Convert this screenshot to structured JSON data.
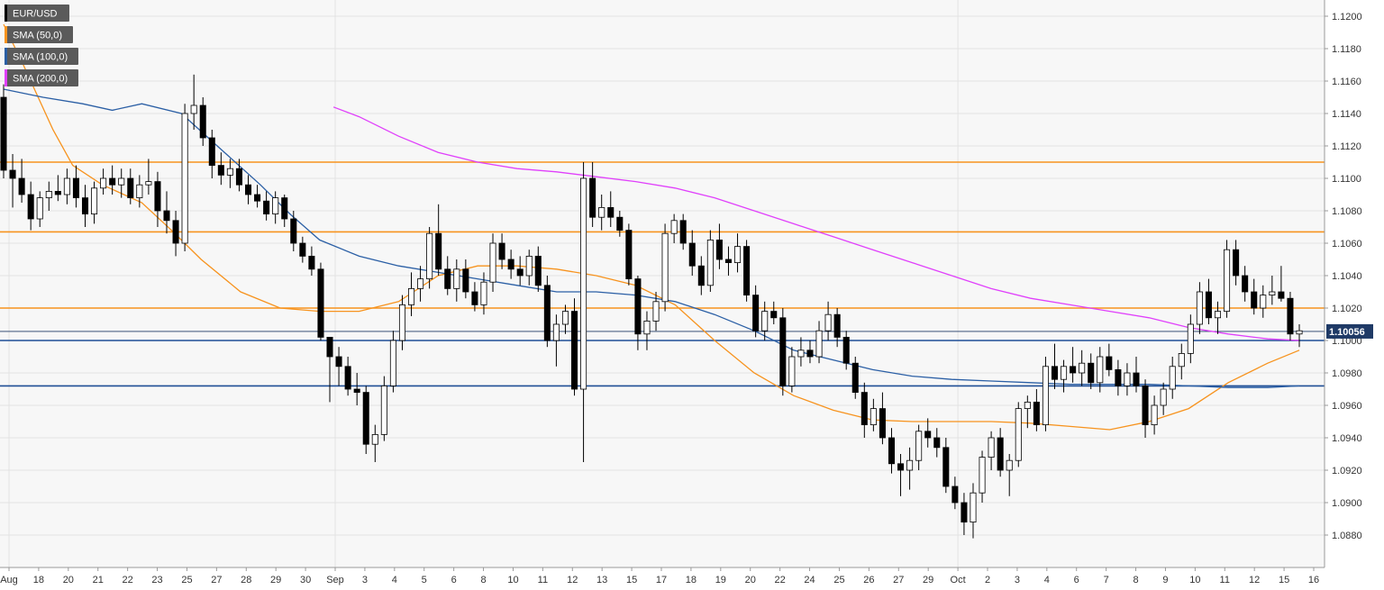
{
  "legend": [
    {
      "label": "EUR/USD",
      "color": "#000000"
    },
    {
      "label": "SMA (50,0)",
      "color": "#f7931e"
    },
    {
      "label": "SMA (100,0)",
      "color": "#2b5fa5"
    },
    {
      "label": "SMA (200,0)",
      "color": "#e040fb"
    }
  ],
  "colors": {
    "background": "#f7f7f7",
    "grid": "#e3e3e3",
    "resistance": "#f7931e",
    "support": "#1f4e96",
    "sma50": "#f7931e",
    "sma100": "#2b5fa5",
    "sma200": "#e040fb",
    "candle_body": "#000000",
    "candle_wick": "#000000",
    "price_tag": "#1f3a66",
    "legend_bg": "#5a5a5a"
  },
  "chart_data": {
    "type": "candlestick",
    "symbol": "EUR/USD",
    "ylim": [
      1.086,
      1.121
    ],
    "y_ticks": [
      "1.0880",
      "1.0900",
      "1.0920",
      "1.0940",
      "1.0960",
      "1.0980",
      "1.1000",
      "1.1020",
      "1.1040",
      "1.1060",
      "1.1080",
      "1.1100",
      "1.1120",
      "1.1140",
      "1.1160",
      "1.1180",
      "1.1200"
    ],
    "x_ticks": [
      "Aug",
      "18",
      "20",
      "21",
      "22",
      "23",
      "25",
      "27",
      "28",
      "29",
      "30",
      "Sep",
      "3",
      "4",
      "5",
      "6",
      "8",
      "10",
      "11",
      "12",
      "13",
      "15",
      "17",
      "18",
      "19",
      "20",
      "22",
      "24",
      "25",
      "26",
      "27",
      "29",
      "Oct",
      "2",
      "3",
      "4",
      "6",
      "7",
      "8",
      "9",
      "10",
      "11",
      "12",
      "15",
      "16"
    ],
    "last_price": "1.10056",
    "horizontal_lines": [
      {
        "kind": "resistance",
        "value": 1.111
      },
      {
        "kind": "resistance",
        "value": 1.1067
      },
      {
        "kind": "resistance",
        "value": 1.102
      },
      {
        "kind": "support",
        "value": 1.1
      },
      {
        "kind": "support",
        "value": 1.0972
      }
    ],
    "candles": [
      [
        1.115,
        1.1158,
        1.11,
        1.1105
      ],
      [
        1.1105,
        1.1115,
        1.1082,
        1.11
      ],
      [
        1.11,
        1.1112,
        1.1085,
        1.109
      ],
      [
        1.109,
        1.1098,
        1.1068,
        1.1075
      ],
      [
        1.1075,
        1.1092,
        1.107,
        1.1088
      ],
      [
        1.1088,
        1.1098,
        1.108,
        1.1092
      ],
      [
        1.1092,
        1.1102,
        1.1086,
        1.109
      ],
      [
        1.109,
        1.1106,
        1.1084,
        1.11
      ],
      [
        1.11,
        1.1108,
        1.1082,
        1.1088
      ],
      [
        1.1088,
        1.1096,
        1.107,
        1.1078
      ],
      [
        1.1078,
        1.1098,
        1.1072,
        1.1094
      ],
      [
        1.1094,
        1.1106,
        1.109,
        1.11
      ],
      [
        1.11,
        1.1108,
        1.109,
        1.1096
      ],
      [
        1.1096,
        1.1106,
        1.1088,
        1.11
      ],
      [
        1.11,
        1.1106,
        1.1084,
        1.1088
      ],
      [
        1.1088,
        1.1102,
        1.1082,
        1.1096
      ],
      [
        1.1096,
        1.1112,
        1.109,
        1.1098
      ],
      [
        1.1098,
        1.1104,
        1.107,
        1.108
      ],
      [
        1.108,
        1.1092,
        1.1066,
        1.1074
      ],
      [
        1.1074,
        1.108,
        1.1052,
        1.106
      ],
      [
        1.106,
        1.1146,
        1.1055,
        1.114
      ],
      [
        1.114,
        1.1164,
        1.113,
        1.1145
      ],
      [
        1.1145,
        1.115,
        1.112,
        1.1125
      ],
      [
        1.1125,
        1.113,
        1.11,
        1.1108
      ],
      [
        1.1108,
        1.1116,
        1.1096,
        1.1102
      ],
      [
        1.1102,
        1.1112,
        1.1094,
        1.1106
      ],
      [
        1.1106,
        1.1112,
        1.1092,
        1.1096
      ],
      [
        1.1096,
        1.1102,
        1.1084,
        1.109
      ],
      [
        1.109,
        1.1096,
        1.1082,
        1.1086
      ],
      [
        1.1086,
        1.1092,
        1.1074,
        1.1078
      ],
      [
        1.1078,
        1.1092,
        1.1072,
        1.1088
      ],
      [
        1.1088,
        1.109,
        1.107,
        1.1075
      ],
      [
        1.1075,
        1.108,
        1.1055,
        1.106
      ],
      [
        1.106,
        1.1064,
        1.1048,
        1.1052
      ],
      [
        1.1052,
        1.1058,
        1.104,
        1.1044
      ],
      [
        1.1044,
        1.1048,
        1.1,
        1.1002
      ],
      [
        1.1002,
        1.1002,
        1.0962,
        1.099
      ],
      [
        1.099,
        1.0996,
        1.0972,
        1.0984
      ],
      [
        1.0984,
        1.099,
        1.0966,
        1.097
      ],
      [
        1.097,
        1.098,
        1.096,
        1.0968
      ],
      [
        1.0968,
        1.0972,
        1.093,
        1.0936
      ],
      [
        1.0936,
        1.0948,
        1.0925,
        1.0942
      ],
      [
        1.0942,
        1.0978,
        1.0938,
        1.0972
      ],
      [
        1.0972,
        1.1006,
        1.0968,
        1.1
      ],
      [
        1.1,
        1.1028,
        1.0994,
        1.1022
      ],
      [
        1.1022,
        1.1042,
        1.1015,
        1.1032
      ],
      [
        1.1032,
        1.1046,
        1.1024,
        1.1038
      ],
      [
        1.1038,
        1.107,
        1.1032,
        1.1066
      ],
      [
        1.1066,
        1.1084,
        1.104,
        1.1044
      ],
      [
        1.1044,
        1.1052,
        1.1028,
        1.1032
      ],
      [
        1.1032,
        1.105,
        1.1024,
        1.1044
      ],
      [
        1.1044,
        1.105,
        1.1026,
        1.103
      ],
      [
        1.103,
        1.1036,
        1.1018,
        1.1022
      ],
      [
        1.1022,
        1.1042,
        1.1016,
        1.1036
      ],
      [
        1.1036,
        1.1066,
        1.103,
        1.106
      ],
      [
        1.106,
        1.1066,
        1.1044,
        1.105
      ],
      [
        1.105,
        1.1056,
        1.1038,
        1.1044
      ],
      [
        1.1044,
        1.1052,
        1.1034,
        1.104
      ],
      [
        1.104,
        1.1056,
        1.1034,
        1.1052
      ],
      [
        1.1052,
        1.1058,
        1.103,
        1.1034
      ],
      [
        1.1034,
        1.104,
        1.0996,
        1.1
      ],
      [
        1.1,
        1.1016,
        1.0984,
        1.101
      ],
      [
        1.101,
        1.1022,
        1.1004,
        1.1018
      ],
      [
        1.1018,
        1.1026,
        1.0966,
        1.097
      ],
      [
        1.097,
        1.111,
        1.0925,
        1.11
      ],
      [
        1.11,
        1.111,
        1.107,
        1.1076
      ],
      [
        1.1076,
        1.109,
        1.1068,
        1.1082
      ],
      [
        1.1082,
        1.1092,
        1.107,
        1.1076
      ],
      [
        1.1076,
        1.108,
        1.1064,
        1.1068
      ],
      [
        1.1068,
        1.1072,
        1.1034,
        1.1038
      ],
      [
        1.1038,
        1.104,
        1.0994,
        1.1004
      ],
      [
        1.1004,
        1.1018,
        1.0994,
        1.1012
      ],
      [
        1.1012,
        1.103,
        1.1006,
        1.1024
      ],
      [
        1.1024,
        1.1072,
        1.1018,
        1.1066
      ],
      [
        1.1066,
        1.1078,
        1.106,
        1.1074
      ],
      [
        1.1074,
        1.1078,
        1.1056,
        1.106
      ],
      [
        1.106,
        1.1068,
        1.104,
        1.1046
      ],
      [
        1.1046,
        1.1052,
        1.1028,
        1.1034
      ],
      [
        1.1034,
        1.1068,
        1.103,
        1.1062
      ],
      [
        1.1062,
        1.1072,
        1.1044,
        1.105
      ],
      [
        1.105,
        1.1058,
        1.104,
        1.1048
      ],
      [
        1.1048,
        1.1066,
        1.1042,
        1.1058
      ],
      [
        1.1058,
        1.1062,
        1.1024,
        1.1028
      ],
      [
        1.1028,
        1.1034,
        1.1002,
        1.1006
      ],
      [
        1.1006,
        1.1024,
        1.1,
        1.1018
      ],
      [
        1.1018,
        1.1024,
        1.101,
        1.1014
      ],
      [
        1.1014,
        1.102,
        1.0966,
        1.0972
      ],
      [
        1.0972,
        1.0996,
        1.0968,
        1.099
      ],
      [
        1.099,
        1.1002,
        1.0984,
        1.0994
      ],
      [
        1.0994,
        1.1,
        1.0986,
        1.099
      ],
      [
        1.099,
        1.1012,
        1.0986,
        1.1006
      ],
      [
        1.1006,
        1.1024,
        1.1,
        1.1016
      ],
      [
        1.1016,
        1.102,
        1.0996,
        1.1002
      ],
      [
        1.1002,
        1.1006,
        1.0982,
        1.0986
      ],
      [
        1.0986,
        1.099,
        1.0964,
        1.0968
      ],
      [
        1.0968,
        1.0974,
        1.094,
        1.0948
      ],
      [
        1.0948,
        1.0964,
        1.0944,
        1.0958
      ],
      [
        1.0958,
        1.0968,
        1.0936,
        1.094
      ],
      [
        1.094,
        1.0946,
        1.0918,
        1.0924
      ],
      [
        1.0924,
        1.093,
        1.0904,
        1.092
      ],
      [
        1.092,
        1.0934,
        1.0908,
        1.0926
      ],
      [
        1.0926,
        1.0948,
        1.092,
        1.0944
      ],
      [
        1.0944,
        1.0952,
        1.0934,
        1.094
      ],
      [
        1.094,
        1.0946,
        1.0928,
        1.0934
      ],
      [
        1.0934,
        1.094,
        1.0906,
        1.091
      ],
      [
        1.091,
        1.0916,
        1.0896,
        1.09
      ],
      [
        1.09,
        1.0906,
        1.088,
        1.0888
      ],
      [
        1.0888,
        1.0912,
        1.0878,
        1.0906
      ],
      [
        1.0906,
        1.0932,
        1.09,
        1.0928
      ],
      [
        1.0928,
        1.0944,
        1.092,
        1.094
      ],
      [
        1.094,
        1.0946,
        1.0916,
        1.092
      ],
      [
        1.092,
        1.093,
        1.0904,
        1.0926
      ],
      [
        1.0926,
        1.0962,
        1.0922,
        1.0958
      ],
      [
        1.0958,
        1.0966,
        1.0946,
        1.0962
      ],
      [
        1.0962,
        1.097,
        1.0944,
        1.0948
      ],
      [
        1.0948,
        1.099,
        1.0944,
        1.0984
      ],
      [
        1.0984,
        1.0998,
        1.097,
        1.0976
      ],
      [
        1.0976,
        1.0988,
        1.0968,
        1.0984
      ],
      [
        1.0984,
        1.0996,
        1.0974,
        1.098
      ],
      [
        1.098,
        1.0994,
        1.0972,
        1.0986
      ],
      [
        1.0986,
        1.0992,
        1.097,
        1.0974
      ],
      [
        1.0974,
        1.0996,
        1.0968,
        1.099
      ],
      [
        1.099,
        1.0998,
        1.0978,
        1.0982
      ],
      [
        1.0982,
        1.0988,
        1.0966,
        1.0972
      ],
      [
        1.0972,
        1.0986,
        1.0966,
        1.098
      ],
      [
        1.098,
        1.099,
        1.0968,
        1.0972
      ],
      [
        1.0972,
        1.0976,
        1.094,
        1.0948
      ],
      [
        1.0948,
        1.0966,
        1.0942,
        1.096
      ],
      [
        1.096,
        1.0974,
        1.0954,
        1.097
      ],
      [
        1.097,
        1.099,
        1.0964,
        1.0984
      ],
      [
        1.0984,
        1.0998,
        1.0976,
        1.0992
      ],
      [
        1.0992,
        1.1016,
        1.0986,
        1.101
      ],
      [
        1.101,
        1.1036,
        1.1004,
        1.103
      ],
      [
        1.103,
        1.1038,
        1.101,
        1.1014
      ],
      [
        1.1014,
        1.1024,
        1.1004,
        1.1018
      ],
      [
        1.1018,
        1.1062,
        1.1014,
        1.1056
      ],
      [
        1.1056,
        1.1062,
        1.1034,
        1.104
      ],
      [
        1.104,
        1.1046,
        1.1024,
        1.103
      ],
      [
        1.103,
        1.1038,
        1.1016,
        1.102
      ],
      [
        1.102,
        1.1034,
        1.1014,
        1.1028
      ],
      [
        1.1028,
        1.104,
        1.1022,
        1.103
      ],
      [
        1.103,
        1.1046,
        1.1024,
        1.1026
      ],
      [
        1.1026,
        1.103,
        1.1,
        1.1004
      ],
      [
        1.1004,
        1.101,
        1.0996,
        1.1006
      ]
    ],
    "sma50": [
      [
        0,
        1.1195
      ],
      [
        10,
        1.117
      ],
      [
        25,
        1.113
      ],
      [
        35,
        1.1108
      ],
      [
        50,
        1.1096
      ],
      [
        70,
        1.1085
      ],
      [
        85,
        1.1068
      ],
      [
        100,
        1.105
      ],
      [
        120,
        1.103
      ],
      [
        140,
        1.102
      ],
      [
        160,
        1.1018
      ],
      [
        180,
        1.1018
      ],
      [
        200,
        1.1024
      ],
      [
        220,
        1.104
      ],
      [
        240,
        1.1046
      ],
      [
        260,
        1.1046
      ],
      [
        280,
        1.1044
      ],
      [
        300,
        1.104
      ],
      [
        320,
        1.1034
      ],
      [
        340,
        1.1022
      ],
      [
        360,
        1.1
      ],
      [
        380,
        1.098
      ],
      [
        400,
        1.0966
      ],
      [
        420,
        1.0957
      ],
      [
        440,
        1.0951
      ],
      [
        460,
        1.095
      ],
      [
        480,
        1.095
      ],
      [
        500,
        1.095
      ],
      [
        520,
        1.0949
      ],
      [
        540,
        1.0947
      ],
      [
        560,
        1.0945
      ],
      [
        580,
        1.095
      ],
      [
        600,
        1.0958
      ],
      [
        620,
        1.0974
      ],
      [
        640,
        1.0986
      ],
      [
        656,
        1.0994
      ]
    ],
    "sma100": [
      [
        0,
        1.1155
      ],
      [
        20,
        1.115
      ],
      [
        40,
        1.1146
      ],
      [
        55,
        1.1142
      ],
      [
        70,
        1.1146
      ],
      [
        90,
        1.114
      ],
      [
        110,
        1.1118
      ],
      [
        130,
        1.1096
      ],
      [
        145,
        1.1078
      ],
      [
        160,
        1.1062
      ],
      [
        180,
        1.1052
      ],
      [
        200,
        1.1046
      ],
      [
        220,
        1.1042
      ],
      [
        240,
        1.1038
      ],
      [
        260,
        1.1034
      ],
      [
        280,
        1.103
      ],
      [
        300,
        1.103
      ],
      [
        320,
        1.1028
      ],
      [
        340,
        1.1024
      ],
      [
        360,
        1.1016
      ],
      [
        380,
        1.1006
      ],
      [
        400,
        1.0994
      ],
      [
        420,
        1.0988
      ],
      [
        440,
        1.0982
      ],
      [
        460,
        1.0978
      ],
      [
        480,
        1.0976
      ],
      [
        500,
        1.0975
      ],
      [
        520,
        1.0974
      ],
      [
        540,
        1.0973
      ],
      [
        560,
        1.0973
      ],
      [
        580,
        1.0973
      ],
      [
        600,
        1.0972
      ],
      [
        620,
        1.0971
      ],
      [
        640,
        1.0971
      ],
      [
        656,
        1.0972
      ]
    ],
    "sma200": [
      [
        167,
        1.1144
      ],
      [
        180,
        1.1138
      ],
      [
        200,
        1.1126
      ],
      [
        220,
        1.1116
      ],
      [
        240,
        1.111
      ],
      [
        260,
        1.1106
      ],
      [
        280,
        1.1104
      ],
      [
        300,
        1.1101
      ],
      [
        320,
        1.1098
      ],
      [
        340,
        1.1094
      ],
      [
        360,
        1.1088
      ],
      [
        380,
        1.108
      ],
      [
        400,
        1.1072
      ],
      [
        420,
        1.1064
      ],
      [
        440,
        1.1056
      ],
      [
        460,
        1.1048
      ],
      [
        480,
        1.104
      ],
      [
        500,
        1.1032
      ],
      [
        520,
        1.1026
      ],
      [
        540,
        1.1022
      ],
      [
        560,
        1.1018
      ],
      [
        580,
        1.1014
      ],
      [
        600,
        1.1008
      ],
      [
        620,
        1.1004
      ],
      [
        640,
        1.1001
      ],
      [
        656,
        1.1
      ]
    ]
  }
}
